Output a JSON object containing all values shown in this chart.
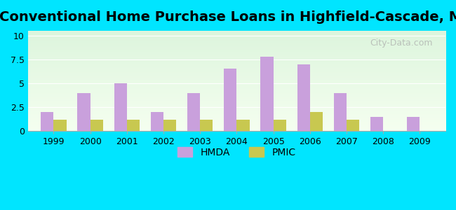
{
  "title": "Conventional Home Purchase Loans in Highfield-Cascade, MD",
  "years": [
    1999,
    2000,
    2001,
    2002,
    2003,
    2004,
    2005,
    2006,
    2007,
    2008,
    2009
  ],
  "hmda": [
    2.0,
    4.0,
    5.0,
    2.0,
    4.0,
    6.5,
    7.8,
    7.0,
    4.0,
    1.5,
    1.5
  ],
  "pmic": [
    1.2,
    1.2,
    1.2,
    1.2,
    1.2,
    1.2,
    1.2,
    2.0,
    1.2,
    0.0,
    0.0
  ],
  "hmda_color": "#c9a0dc",
  "pmic_color": "#c8c850",
  "bg_color_top": "#e8f5e8",
  "bg_color_bottom": "#f5ffe8",
  "outer_bg": "#00e5ff",
  "yticks": [
    0,
    2.5,
    5,
    7.5,
    10
  ],
  "ylim": [
    0,
    10.5
  ],
  "bar_width": 0.35,
  "title_fontsize": 14,
  "watermark_text": "City-Data.com"
}
